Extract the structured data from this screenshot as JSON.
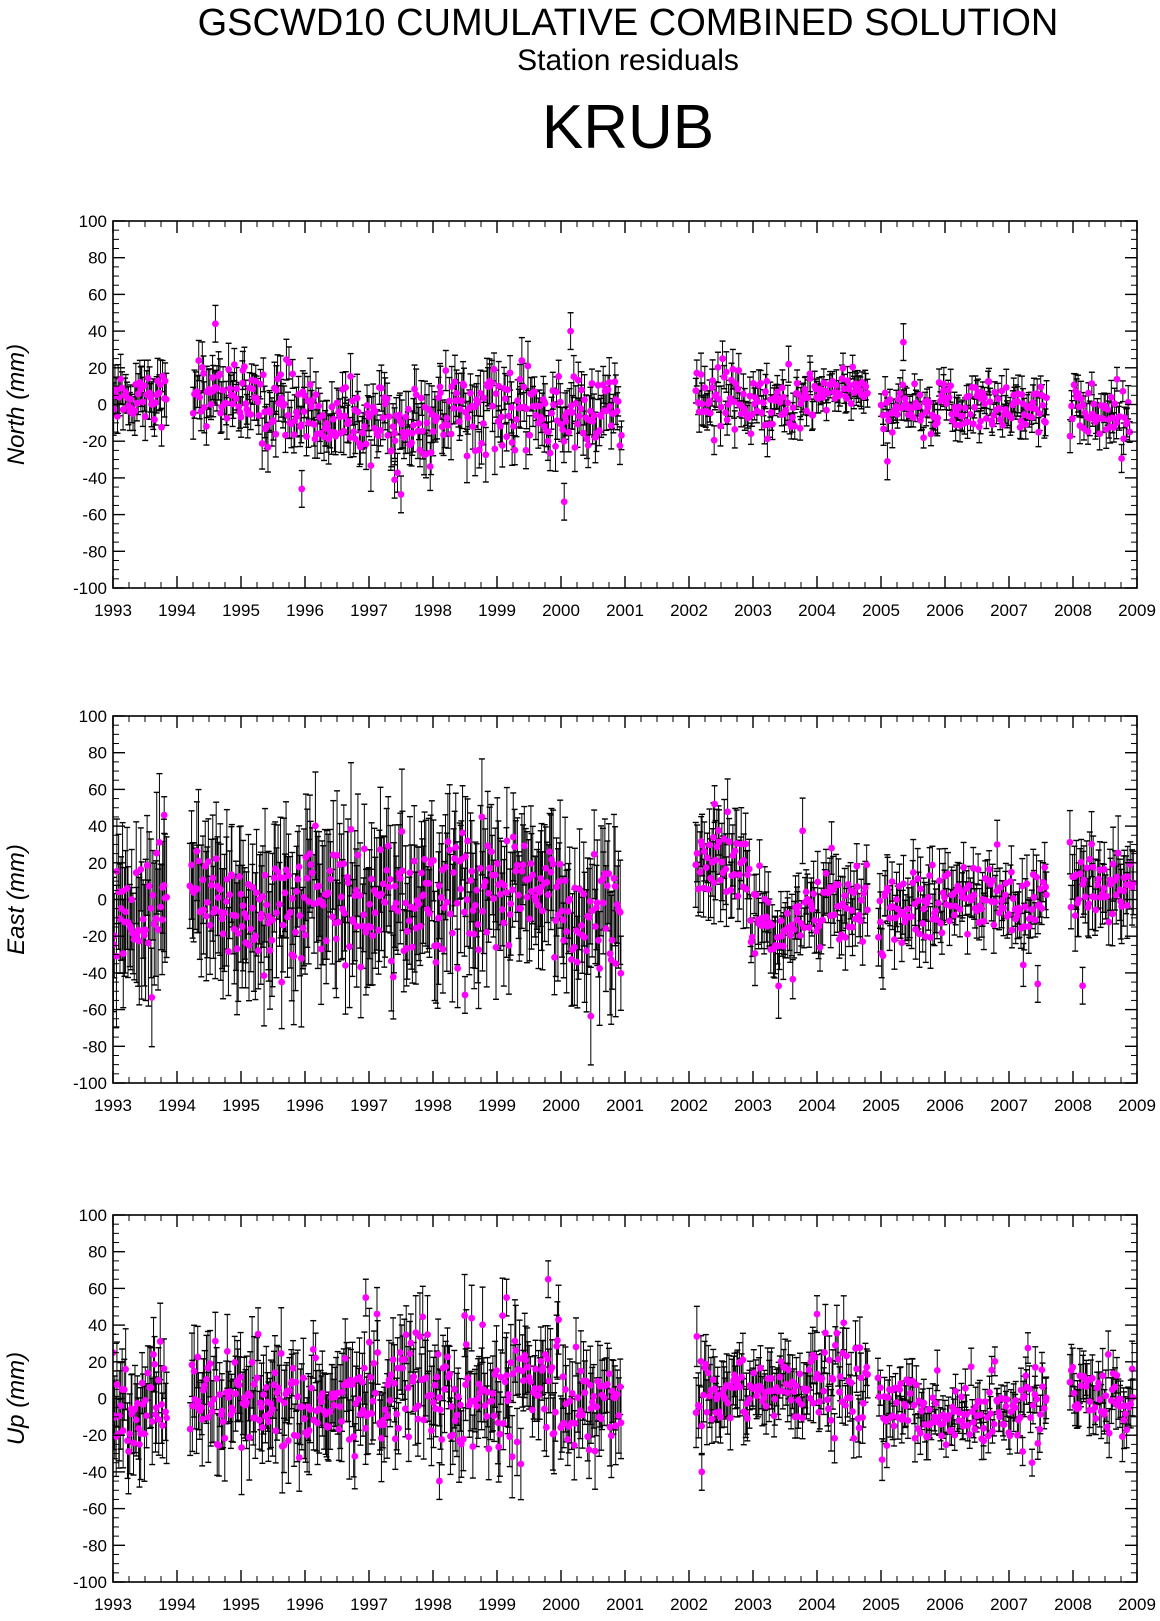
{
  "header": {
    "title": "GSCWD10 CUMULATIVE COMBINED SOLUTION",
    "subtitle": "Station residuals",
    "station": "KRUB"
  },
  "colors": {
    "point": "#ff00ff",
    "errorbar": "#000000",
    "axis": "#000000"
  },
  "chart_data": [
    {
      "type": "scatter",
      "title": "",
      "xlabel": "",
      "ylabel": "North (mm)",
      "xlim": [
        1993,
        2009
      ],
      "ylim": [
        -100,
        100
      ],
      "x_ticks": [
        "1993",
        "1994",
        "1995",
        "1996",
        "1997",
        "1998",
        "1999",
        "2000",
        "2001",
        "2002",
        "2003",
        "2004",
        "2005",
        "2006",
        "2007",
        "2008",
        "2009"
      ],
      "y_ticks": [
        "100",
        "80",
        "60",
        "40",
        "20",
        "0",
        "-20",
        "-40",
        "-60",
        "-80",
        "-100"
      ],
      "grid": false,
      "error_bars": true,
      "segments": [
        {
          "start": 1993.0,
          "end": 1993.85,
          "center": 5,
          "spread": 9,
          "err": 11
        },
        {
          "start": 1994.25,
          "end": 1994.95,
          "center": 8,
          "spread": 11,
          "err": 11
        },
        {
          "start": 1994.95,
          "end": 1996.05,
          "center": 0,
          "spread": 12,
          "err": 11
        },
        {
          "start": 1996.05,
          "end": 1997.0,
          "center": -8,
          "spread": 11,
          "err": 11
        },
        {
          "start": 1997.0,
          "end": 1998.0,
          "center": -12,
          "spread": 13,
          "err": 12
        },
        {
          "start": 1998.0,
          "end": 1999.1,
          "center": -4,
          "spread": 14,
          "err": 12
        },
        {
          "start": 1999.1,
          "end": 1999.9,
          "center": -6,
          "spread": 14,
          "err": 11
        },
        {
          "start": 1999.9,
          "end": 2000.95,
          "center": -5,
          "spread": 14,
          "err": 11
        },
        {
          "start": 2002.1,
          "end": 2002.9,
          "center": 2,
          "spread": 14,
          "err": 9
        },
        {
          "start": 2002.9,
          "end": 2003.95,
          "center": 0,
          "spread": 11,
          "err": 8
        },
        {
          "start": 2003.95,
          "end": 2004.8,
          "center": 7,
          "spread": 6,
          "err": 7
        },
        {
          "start": 2005.0,
          "end": 2006.0,
          "center": -3,
          "spread": 9,
          "err": 7
        },
        {
          "start": 2006.0,
          "end": 2006.95,
          "center": 0,
          "spread": 10,
          "err": 7
        },
        {
          "start": 2006.95,
          "end": 2007.6,
          "center": 0,
          "spread": 9,
          "err": 8
        },
        {
          "start": 2007.95,
          "end": 2008.9,
          "center": -5,
          "spread": 11,
          "err": 8
        }
      ],
      "highlights": [
        [
          1995.95,
          -46
        ],
        [
          2000.05,
          -53
        ],
        [
          1994.6,
          44
        ],
        [
          2000.15,
          40
        ],
        [
          2005.35,
          34
        ],
        [
          1997.4,
          -41
        ],
        [
          1997.5,
          -49
        ],
        [
          2005.1,
          -31
        ]
      ]
    },
    {
      "type": "scatter",
      "title": "",
      "xlabel": "",
      "ylabel": "East (mm)",
      "xlim": [
        1993,
        2009
      ],
      "ylim": [
        -100,
        100
      ],
      "x_ticks": [
        "1993",
        "1994",
        "1995",
        "1996",
        "1997",
        "1998",
        "1999",
        "2000",
        "2001",
        "2002",
        "2003",
        "2004",
        "2005",
        "2006",
        "2007",
        "2008",
        "2009"
      ],
      "y_ticks": [
        "100",
        "80",
        "60",
        "40",
        "20",
        "0",
        "-20",
        "-40",
        "-60",
        "-80",
        "-100"
      ],
      "grid": false,
      "error_bars": true,
      "segments": [
        {
          "start": 1993.0,
          "end": 1993.85,
          "center": -5,
          "spread": 22,
          "err": 30
        },
        {
          "start": 1994.2,
          "end": 1994.95,
          "center": -3,
          "spread": 24,
          "err": 30
        },
        {
          "start": 1994.95,
          "end": 1996.05,
          "center": -2,
          "spread": 22,
          "err": 29
        },
        {
          "start": 1996.05,
          "end": 1997.0,
          "center": 2,
          "spread": 20,
          "err": 28
        },
        {
          "start": 1997.0,
          "end": 1998.0,
          "center": 0,
          "spread": 21,
          "err": 28
        },
        {
          "start": 1998.0,
          "end": 1999.0,
          "center": 3,
          "spread": 22,
          "err": 29
        },
        {
          "start": 1999.0,
          "end": 2000.0,
          "center": 2,
          "spread": 20,
          "err": 28
        },
        {
          "start": 2000.0,
          "end": 2000.95,
          "center": -5,
          "spread": 22,
          "err": 28
        },
        {
          "start": 2002.1,
          "end": 2002.95,
          "center": 20,
          "spread": 15,
          "err": 18
        },
        {
          "start": 2002.95,
          "end": 2003.75,
          "center": -18,
          "spread": 14,
          "err": 14
        },
        {
          "start": 2003.75,
          "end": 2004.8,
          "center": 0,
          "spread": 14,
          "err": 14
        },
        {
          "start": 2004.95,
          "end": 2006.0,
          "center": -4,
          "spread": 13,
          "err": 14
        },
        {
          "start": 2006.0,
          "end": 2006.95,
          "center": 0,
          "spread": 11,
          "err": 12
        },
        {
          "start": 2006.95,
          "end": 2007.6,
          "center": -3,
          "spread": 13,
          "err": 12
        },
        {
          "start": 2007.95,
          "end": 2008.95,
          "center": 10,
          "spread": 15,
          "err": 16
        }
      ],
      "highlights": [
        [
          1998.5,
          -52
        ],
        [
          2002.4,
          52
        ],
        [
          1993.8,
          46
        ],
        [
          2008.15,
          -47
        ],
        [
          2007.45,
          -46
        ]
      ]
    },
    {
      "type": "scatter",
      "title": "",
      "xlabel": "",
      "ylabel": "Up (mm)",
      "xlim": [
        1993,
        2009
      ],
      "ylim": [
        -100,
        100
      ],
      "x_ticks": [
        "1993",
        "1994",
        "1995",
        "1996",
        "1997",
        "1998",
        "1999",
        "2000",
        "2001",
        "2002",
        "2003",
        "2004",
        "2005",
        "2006",
        "2007",
        "2008",
        "2009"
      ],
      "y_ticks": [
        "100",
        "80",
        "60",
        "40",
        "20",
        "0",
        "-20",
        "-40",
        "-60",
        "-80",
        "-100"
      ],
      "grid": false,
      "error_bars": true,
      "segments": [
        {
          "start": 1993.0,
          "end": 1993.85,
          "center": -8,
          "spread": 18,
          "err": 20
        },
        {
          "start": 1994.2,
          "end": 1994.95,
          "center": -5,
          "spread": 18,
          "err": 20
        },
        {
          "start": 1994.95,
          "end": 1996.0,
          "center": 0,
          "spread": 19,
          "err": 20
        },
        {
          "start": 1996.0,
          "end": 1997.0,
          "center": -5,
          "spread": 18,
          "err": 19
        },
        {
          "start": 1997.0,
          "end": 1998.0,
          "center": 8,
          "spread": 19,
          "err": 19
        },
        {
          "start": 1998.0,
          "end": 1999.0,
          "center": 2,
          "spread": 19,
          "err": 19
        },
        {
          "start": 1999.0,
          "end": 2000.0,
          "center": 5,
          "spread": 20,
          "err": 19
        },
        {
          "start": 2000.0,
          "end": 2000.95,
          "center": -2,
          "spread": 18,
          "err": 18
        },
        {
          "start": 2002.1,
          "end": 2002.95,
          "center": 3,
          "spread": 15,
          "err": 15
        },
        {
          "start": 2002.95,
          "end": 2003.9,
          "center": 5,
          "spread": 13,
          "err": 13
        },
        {
          "start": 2003.9,
          "end": 2004.8,
          "center": 8,
          "spread": 14,
          "err": 13
        },
        {
          "start": 2004.95,
          "end": 2005.8,
          "center": -5,
          "spread": 15,
          "err": 10
        },
        {
          "start": 2005.8,
          "end": 2006.95,
          "center": -10,
          "spread": 13,
          "err": 9
        },
        {
          "start": 2006.95,
          "end": 2007.6,
          "center": -5,
          "spread": 14,
          "err": 10
        },
        {
          "start": 2007.95,
          "end": 2008.95,
          "center": 0,
          "spread": 12,
          "err": 12
        }
      ],
      "highlights": [
        [
          1999.8,
          65
        ],
        [
          1996.95,
          55
        ],
        [
          1999.15,
          55
        ],
        [
          2004.0,
          46
        ],
        [
          2002.2,
          -40
        ],
        [
          1998.1,
          -45
        ],
        [
          1993.0,
          25
        ]
      ]
    }
  ]
}
